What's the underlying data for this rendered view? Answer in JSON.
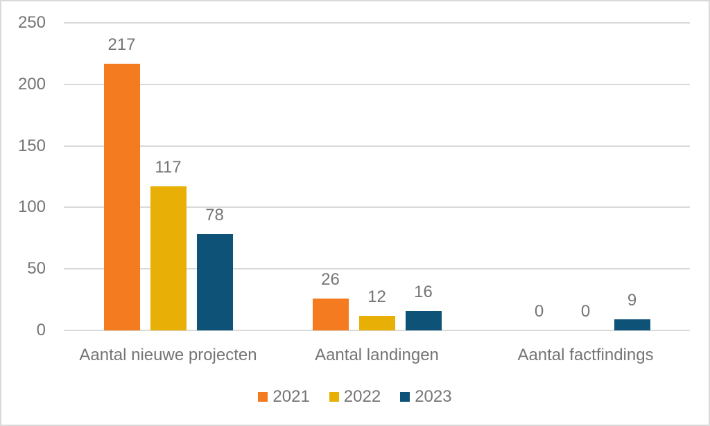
{
  "chart_data": {
    "type": "bar",
    "title": "",
    "xlabel": "",
    "ylabel": "",
    "categories": [
      "Aantal nieuwe projecten",
      "Aantal landingen",
      "Aantal factfindings"
    ],
    "series": [
      {
        "name": "2021",
        "color": "#F47B20",
        "values": [
          217,
          26,
          0
        ]
      },
      {
        "name": "2022",
        "color": "#E8B007",
        "values": [
          117,
          12,
          0
        ]
      },
      {
        "name": "2023",
        "color": "#0E5277",
        "values": [
          78,
          16,
          9
        ]
      }
    ],
    "ylim": [
      0,
      250
    ],
    "yticks": [
      0,
      50,
      100,
      150,
      200,
      250
    ],
    "grid": true,
    "value_labels_shown": true,
    "legend_position": "bottom"
  },
  "colors": {
    "text": "#757575",
    "gridline": "#D9D9D9",
    "background": "#FFFFFF",
    "border": "#D9D9D9"
  }
}
